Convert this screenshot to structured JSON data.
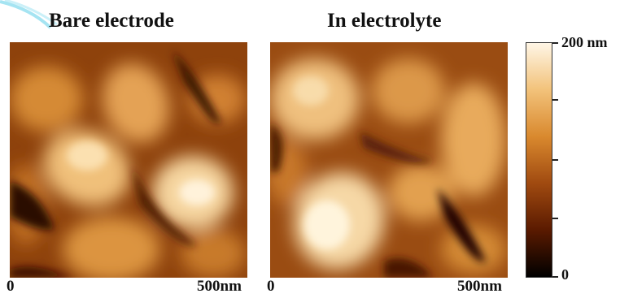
{
  "panels": [
    {
      "title": "Bare electrode",
      "axis_start": "0",
      "axis_end": "500nm"
    },
    {
      "title": "In electrolyte",
      "axis_start": "0",
      "axis_end": "500nm"
    }
  ],
  "colorbar": {
    "max_label": "200 nm",
    "min_label": "0",
    "colors": [
      "#000000",
      "#5a1a00",
      "#a04a10",
      "#d9892e",
      "#f2c27a",
      "#fff6e6"
    ]
  }
}
